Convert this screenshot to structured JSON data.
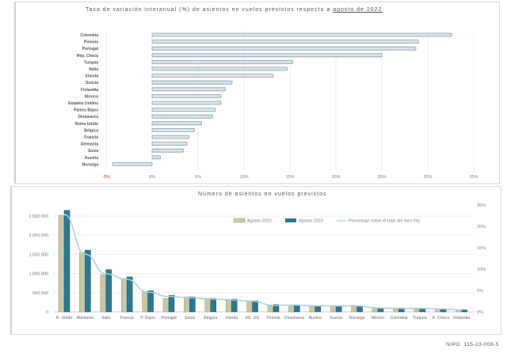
{
  "chart_data": [
    {
      "type": "bar",
      "orientation": "horizontal",
      "title_prefix": "Tasa de variación interanual (%) de asientos en vuelos previstos respecto a",
      "title_link": "agosto de 2022",
      "categories": [
        "Colombia",
        "Polonia",
        "Portugal",
        "Rep. Checa",
        "Turquía",
        "Italia",
        "Irlanda",
        "Suecia",
        "Finlandia",
        "México",
        "Estados Unidos",
        "Países Bajos",
        "Dinamarca",
        "Reino Unido",
        "Bélgica",
        "Francia",
        "Alemania",
        "Suiza",
        "Austria",
        "Noruega"
      ],
      "values": [
        32.6,
        29.0,
        28.7,
        25.0,
        15.3,
        14.7,
        13.2,
        8.7,
        8.0,
        7.5,
        7.5,
        6.9,
        6.6,
        5.4,
        4.6,
        4.0,
        3.8,
        3.4,
        0.9,
        -4.3
      ],
      "xlim": [
        -5,
        35
      ],
      "xticks": [
        "-5%",
        "0%",
        "5%",
        "10%",
        "15%",
        "20%",
        "25%",
        "30%",
        "35%"
      ],
      "xtick_values": [
        -5,
        0,
        5,
        10,
        15,
        20,
        25,
        30,
        35
      ],
      "grid": true,
      "colors": {
        "bar_fill": "#d7e6ea",
        "bar_stroke": "#8a9ca2",
        "negative_tick": "#c0392b"
      }
    },
    {
      "type": "bar",
      "title": "Número de asientos en vuelos previstos",
      "categories": [
        "R. Unido",
        "Alemania",
        "Italia",
        "Francia",
        "P. Bajos",
        "Portugal",
        "Suiza",
        "Bélgica",
        "Irlanda",
        "EE. UU",
        "Polonia",
        "Dinamarca",
        "Austria",
        "Suecia",
        "Noruega",
        "Mexico",
        "Colombia",
        "Turquía",
        "R. Checa",
        "Finlandia"
      ],
      "series": [
        {
          "name": "Agosto 2022",
          "type": "bar",
          "color": "#c8c7a3",
          "values": [
            2520000,
            1550000,
            970000,
            870000,
            530000,
            350000,
            390000,
            350000,
            300000,
            280000,
            160000,
            180000,
            160000,
            160000,
            170000,
            110000,
            80000,
            80000,
            80000,
            50000
          ]
        },
        {
          "name": "Agosto 2023",
          "type": "bar",
          "color": "#2a7990",
          "values": [
            2650000,
            1610000,
            1100000,
            910000,
            550000,
            430000,
            390000,
            350000,
            330000,
            290000,
            190000,
            180000,
            160000,
            160000,
            160000,
            100000,
            100000,
            90000,
            80000,
            50000
          ]
        },
        {
          "name": "Porcentaje sobre el total del mes (%)",
          "type": "line",
          "axis": "right",
          "color": "#a9cfe0",
          "values": [
            22.8,
            13.5,
            8.9,
            7.6,
            4.6,
            3.6,
            3.3,
            3.0,
            2.8,
            2.5,
            1.5,
            1.6,
            1.4,
            1.4,
            1.4,
            0.9,
            0.8,
            0.8,
            0.7,
            0.4
          ]
        }
      ],
      "ylim": [
        0,
        2600000
      ],
      "yticks": [
        "0",
        "500.000",
        "1.000.000",
        "1.500.000",
        "2.000.000",
        "2.500.000"
      ],
      "ytick_values": [
        0,
        500000,
        1000000,
        1500000,
        2000000,
        2500000
      ],
      "y2lim": [
        0,
        25
      ],
      "y2ticks": [
        "0%",
        "5%",
        "10%",
        "15%",
        "20%",
        "25%"
      ],
      "y2tick_values": [
        0,
        5,
        10,
        15,
        20,
        25
      ],
      "legend": "top-center",
      "grid": true
    }
  ],
  "footer": {
    "nipo": "NIPO: 115-23-008-5"
  }
}
